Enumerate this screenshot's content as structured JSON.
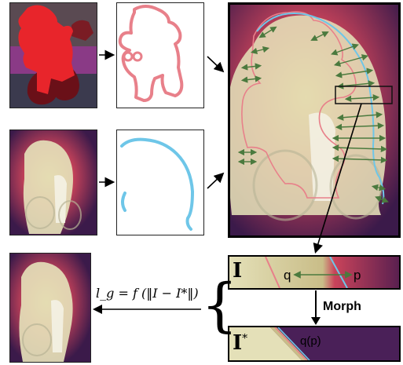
{
  "labels": {
    "morph": "Morph",
    "point_q": "q",
    "point_p": "p",
    "point_qp": "q(p)",
    "image_I": "I",
    "image_I_star": "I",
    "image_I_star_sup": "*",
    "loss_formula": "l_g = f (‖I − I*‖)"
  },
  "colors": {
    "mask_red": "#e8252b",
    "contour_pink": "#e8808a",
    "edge_blue": "#6ec6e8",
    "arrow_green": "#4b7a3e",
    "heat_dark": "#3b1a4a",
    "heat_warm": "#e8b36a",
    "pale_fill": "#e4e0b8"
  }
}
